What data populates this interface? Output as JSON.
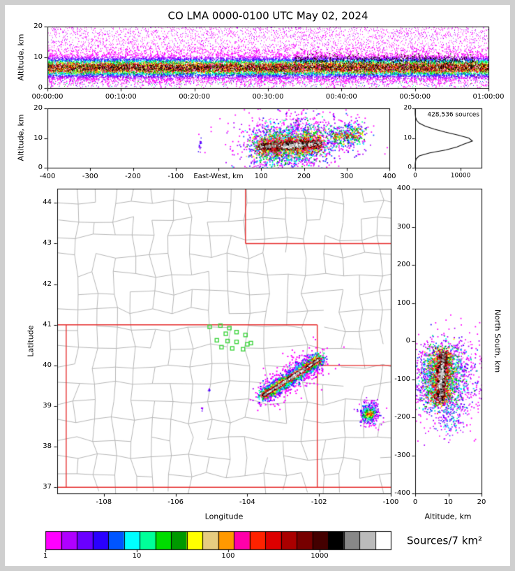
{
  "title": "CO LMA 0000-0100 UTC May 02, 2024",
  "panels": {
    "time_height": {
      "ylabel": "Altitude, km",
      "yticks": [
        "0",
        "10",
        "20"
      ],
      "xticks": [
        "00:00:00",
        "00:10:00",
        "00:20:00",
        "00:30:00",
        "00:40:00",
        "00:50:00",
        "01:00:00"
      ]
    },
    "ew_height": {
      "ylabel": "Altitude, km",
      "xlabel": "East-West, km",
      "yticks": [
        "0",
        "10",
        "20"
      ],
      "xticks": [
        "-400",
        "-300",
        "-200",
        "-100",
        "100",
        "200",
        "300",
        "400"
      ],
      "xtick_values": [
        -400,
        -300,
        -200,
        -100,
        100,
        200,
        300,
        400
      ]
    },
    "histogram": {
      "annotation": "428,536 sources",
      "yticks": [
        "0",
        "10",
        "20"
      ],
      "xticks": [
        "0",
        "10000"
      ],
      "xtick_values": [
        0,
        10000
      ]
    },
    "map": {
      "xlabel": "Longitude",
      "ylabel": "Latitude",
      "xticks": [
        "-108",
        "-106",
        "-104",
        "-102",
        "-100"
      ],
      "xtick_values": [
        -108,
        -106,
        -104,
        -102,
        -100
      ],
      "yticks": [
        "37",
        "38",
        "39",
        "40",
        "41",
        "42",
        "43",
        "44"
      ],
      "ytick_values": [
        37,
        38,
        39,
        40,
        41,
        42,
        43,
        44
      ]
    },
    "ns_height": {
      "xlabel": "Altitude, km",
      "ylabel": "North South, km",
      "xticks": [
        "0",
        "10",
        "20"
      ],
      "xtick_values": [
        0,
        10,
        20
      ],
      "yticks": [
        "-400",
        "-300",
        "-200",
        "-100",
        "0",
        "100",
        "200",
        "300",
        "400"
      ],
      "ytick_values": [
        -400,
        -300,
        -200,
        -100,
        0,
        100,
        200,
        300,
        400
      ]
    }
  },
  "colorbar": {
    "label": "Sources/7 km²",
    "ticks": [
      "1",
      "10",
      "100",
      "1000"
    ],
    "tick_values": [
      1,
      10,
      100,
      1000
    ],
    "colors": [
      "#ff00ff",
      "#b000ff",
      "#6a00ff",
      "#2a00ff",
      "#0055ff",
      "#00ffff",
      "#00ff99",
      "#00dd00",
      "#009900",
      "#ffff00",
      "#e6cc80",
      "#ff9900",
      "#ff00aa",
      "#ff2200",
      "#dd0000",
      "#aa0000",
      "#770000",
      "#440000",
      "#000000",
      "#888888",
      "#bbbbbb",
      "#ffffff"
    ]
  },
  "chart_data": {
    "type": "heatmap",
    "network": "CO LMA",
    "date": "May 02, 2024",
    "time_window_utc": [
      "00:00:00",
      "01:00:00"
    ],
    "total_sources": 428536,
    "units": "Sources/7 km²",
    "log_scale": true,
    "altitude_km_range": [
      0,
      20
    ],
    "ew_km_range": [
      -400,
      400
    ],
    "ns_km_range": [
      -400,
      400
    ],
    "map_extent": {
      "lon": [
        -109.3,
        -100.0
      ],
      "lat": [
        36.85,
        44.35
      ]
    },
    "time_height_dense_band_km": [
      4,
      11
    ],
    "altitude_histogram": {
      "alt_km": [
        0,
        1,
        2,
        3,
        4,
        5,
        6,
        7,
        8,
        9,
        10,
        11,
        12,
        13,
        14,
        15,
        16,
        17,
        18,
        19,
        20
      ],
      "sources": [
        0,
        0,
        60,
        200,
        900,
        3200,
        6800,
        9200,
        10800,
        12600,
        11800,
        9400,
        6600,
        4200,
        2200,
        900,
        300,
        80,
        15,
        0,
        0
      ],
      "x_max": 14600
    },
    "state_borders_lonlat": [
      [
        [
          -109.05,
          37.0
        ],
        [
          -109.05,
          41.0
        ]
      ],
      [
        [
          -109.3,
          41.0
        ],
        [
          -102.05,
          41.0
        ]
      ],
      [
        [
          -102.05,
          37.0
        ],
        [
          -102.05,
          41.0
        ]
      ],
      [
        [
          -109.3,
          37.0
        ],
        [
          -100.0,
          37.0
        ]
      ],
      [
        [
          -102.05,
          40.0
        ],
        [
          -100.0,
          40.0
        ]
      ],
      [
        [
          -104.05,
          44.35
        ],
        [
          -104.05,
          43.0
        ]
      ],
      [
        [
          -104.05,
          43.0
        ],
        [
          -100.0,
          43.0
        ]
      ]
    ],
    "stations_lonlat": [
      [
        -105.05,
        40.95
      ],
      [
        -104.75,
        40.98
      ],
      [
        -104.5,
        40.92
      ],
      [
        -104.6,
        40.78
      ],
      [
        -104.3,
        40.82
      ],
      [
        -104.05,
        40.75
      ],
      [
        -104.85,
        40.62
      ],
      [
        -104.55,
        40.6
      ],
      [
        -104.3,
        40.58
      ],
      [
        -104.0,
        40.52
      ],
      [
        -104.72,
        40.45
      ],
      [
        -104.42,
        40.42
      ],
      [
        -104.12,
        40.4
      ],
      [
        -103.9,
        40.55
      ]
    ],
    "storms": {
      "main_track_lonlat": [
        [
          -103.58,
          39.27
        ],
        [
          -102.0,
          40.17
        ]
      ],
      "main_core_alt_km": 8,
      "main_alt_extent_km": [
        3,
        14
      ],
      "main_ew_km": [
        95,
        235
      ],
      "main_ns_km": [
        -155,
        -30
      ],
      "secondary_center_lonlat": [
        -100.62,
        38.82
      ],
      "secondary_ew_km": [
        265,
        332
      ],
      "secondary_ns_km": [
        -235,
        -170
      ],
      "minor_specks_lonlat": [
        [
          -105.28,
          38.93
        ],
        [
          -105.08,
          39.4
        ]
      ]
    }
  }
}
